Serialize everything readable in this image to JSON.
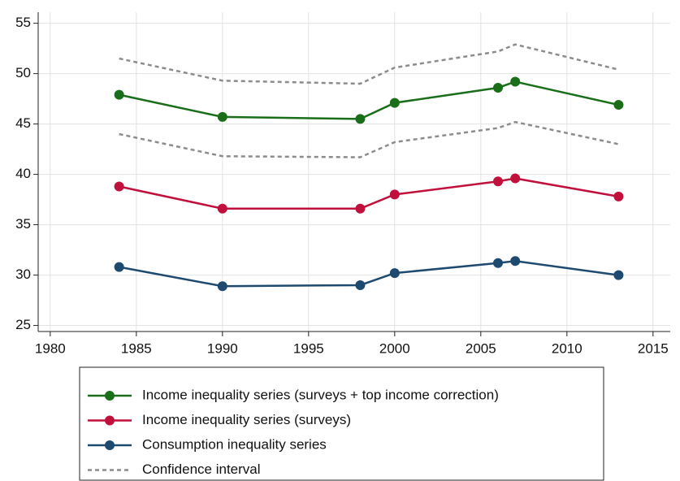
{
  "chart_data": {
    "type": "line",
    "x": [
      1984,
      1990,
      1998,
      2000,
      2006,
      2007,
      2013
    ],
    "series": [
      {
        "name": "Income inequality series (surveys + top income correction)",
        "color": "#1a6e1a",
        "values": [
          47.9,
          45.7,
          45.5,
          47.1,
          48.6,
          49.2,
          46.9
        ]
      },
      {
        "name": "Income inequality series (surveys)",
        "color": "#c0103c",
        "values": [
          38.8,
          36.6,
          36.6,
          38.0,
          39.3,
          39.6,
          37.8
        ]
      },
      {
        "name": "Consumption inequality series",
        "color": "#1e4a70",
        "values": [
          30.8,
          28.9,
          29.0,
          30.2,
          31.2,
          31.4,
          30.0
        ]
      }
    ],
    "confidence_interval": {
      "name": "Confidence interval",
      "color": "#8c8c8c",
      "upper": [
        51.5,
        49.3,
        49.0,
        50.6,
        52.2,
        52.9,
        50.4
      ],
      "lower": [
        44.0,
        41.8,
        41.7,
        43.2,
        44.6,
        45.2,
        43.0
      ]
    },
    "xlim": [
      1979.3,
      2016
    ],
    "xticks": [
      1980,
      1985,
      1990,
      1995,
      2000,
      2005,
      2010,
      2015
    ],
    "ylim": [
      24.4,
      56.1
    ],
    "yticks": [
      25,
      30,
      35,
      40,
      45,
      50,
      55
    ],
    "grid": true
  }
}
